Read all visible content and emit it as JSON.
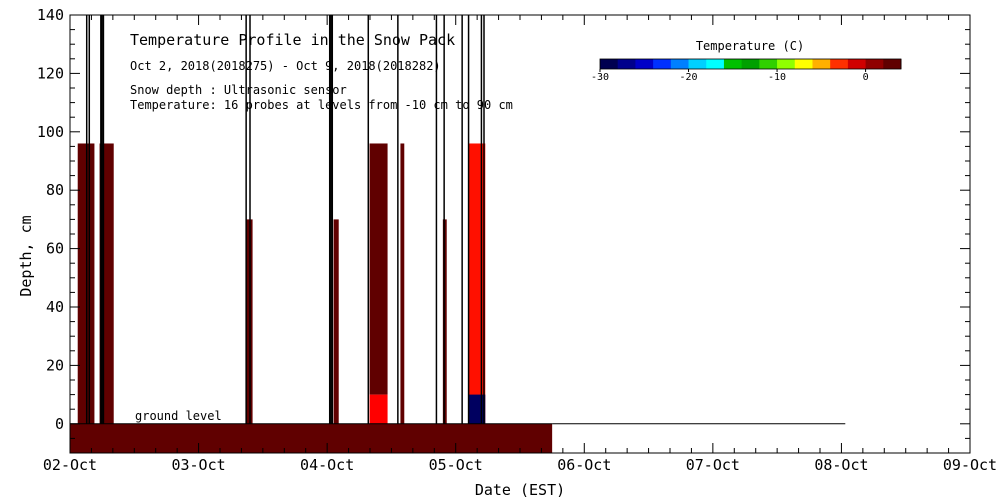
{
  "chart_data": {
    "type": "heatmap",
    "title": "Temperature Profile in the Snow Pack",
    "subtitle": "Oct  2, 2018(2018275) - Oct  9, 2018(2018282)",
    "notes": [
      "Snow depth : Ultrasonic sensor",
      "Temperature: 16 probes at levels from -10 cm to 90 cm"
    ],
    "xlabel": "Date (EST)",
    "ylabel": "Depth, cm",
    "x_ticks": [
      "02-Oct",
      "03-Oct",
      "04-Oct",
      "05-Oct",
      "06-Oct",
      "07-Oct",
      "08-Oct",
      "09-Oct"
    ],
    "xlim_days": [
      0,
      7
    ],
    "ylim": [
      -10,
      140
    ],
    "y_ticks": [
      0,
      20,
      40,
      60,
      80,
      100,
      120,
      140
    ],
    "annotation": "ground level",
    "colorbar": {
      "label": "Temperature (C)",
      "range": [
        -30,
        4
      ],
      "tick_values": [
        -30,
        -20,
        -10,
        0
      ],
      "tick_labels": [
        "-30",
        "-20",
        "-10",
        "0"
      ],
      "colors": [
        "#000050",
        "#00008c",
        "#0000c8",
        "#0030ff",
        "#0080ff",
        "#00d0ff",
        "#00ffff",
        "#00c000",
        "#00a000",
        "#30d000",
        "#90ff00",
        "#ffff00",
        "#ffb000",
        "#ff3000",
        "#d00000",
        "#900000",
        "#600000"
      ]
    },
    "ground_band": {
      "start": 0,
      "end": 3.75,
      "bottom": -10,
      "top": 0,
      "color": "#600000"
    },
    "cells": [
      {
        "start": 0.06,
        "end": 0.19,
        "bottom": 0,
        "top": 96,
        "color": "#600000"
      },
      {
        "start": 0.23,
        "end": 0.34,
        "bottom": 0,
        "top": 96,
        "color": "#600000"
      },
      {
        "start": 1.37,
        "end": 1.42,
        "bottom": 0,
        "top": 70,
        "color": "#600000"
      },
      {
        "start": 2.05,
        "end": 2.09,
        "bottom": 0,
        "top": 70,
        "color": "#600000"
      },
      {
        "start": 2.33,
        "end": 2.47,
        "bottom": 10,
        "top": 96,
        "color": "#600000"
      },
      {
        "start": 2.33,
        "end": 2.47,
        "bottom": 0,
        "top": 10,
        "color": "#ff0000"
      },
      {
        "start": 2.57,
        "end": 2.6,
        "bottom": 0,
        "top": 96,
        "color": "#600000"
      },
      {
        "start": 2.9,
        "end": 2.93,
        "bottom": 0,
        "top": 70,
        "color": "#600000"
      },
      {
        "start": 3.1,
        "end": 3.23,
        "bottom": 0,
        "top": 96,
        "color": "#ff1000"
      },
      {
        "start": 3.1,
        "end": 3.23,
        "bottom": 0,
        "top": 10,
        "color": "#000060"
      }
    ],
    "event_lines": [
      0.13,
      0.15,
      0.24,
      0.25,
      0.26,
      1.37,
      1.4,
      2.02,
      2.03,
      2.04,
      2.32,
      2.55,
      2.85,
      2.91,
      3.05,
      3.1,
      3.2,
      3.22
    ],
    "snow_depth_segment": {
      "start": 3.75,
      "end": 6.03,
      "depth": 0
    }
  }
}
